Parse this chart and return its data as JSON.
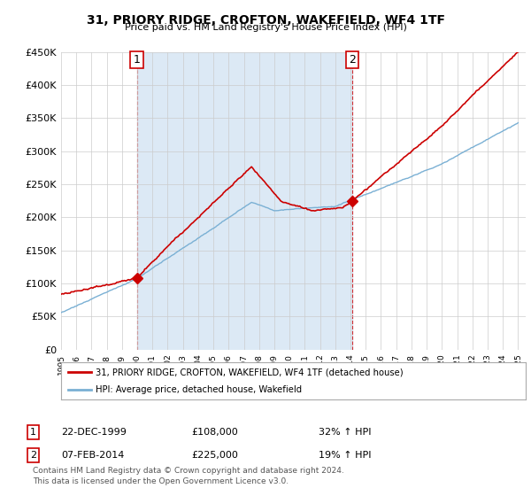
{
  "title": "31, PRIORY RIDGE, CROFTON, WAKEFIELD, WF4 1TF",
  "subtitle": "Price paid vs. HM Land Registry's House Price Index (HPI)",
  "ylabel_ticks": [
    "£0",
    "£50K",
    "£100K",
    "£150K",
    "£200K",
    "£250K",
    "£300K",
    "£350K",
    "£400K",
    "£450K"
  ],
  "ylim": [
    0,
    450000
  ],
  "xlim_start": 1995.0,
  "xlim_end": 2025.5,
  "sale1_x": 1999.97,
  "sale1_y": 108000,
  "sale2_x": 2014.1,
  "sale2_y": 225000,
  "legend_line1": "31, PRIORY RIDGE, CROFTON, WAKEFIELD, WF4 1TF (detached house)",
  "legend_line2": "HPI: Average price, detached house, Wakefield",
  "table_row1": [
    "1",
    "22-DEC-1999",
    "£108,000",
    "32% ↑ HPI"
  ],
  "table_row2": [
    "2",
    "07-FEB-2014",
    "£225,000",
    "19% ↑ HPI"
  ],
  "footnote": "Contains HM Land Registry data © Crown copyright and database right 2024.\nThis data is licensed under the Open Government Licence v3.0.",
  "line_color_house": "#cc0000",
  "line_color_hpi": "#7ab0d4",
  "vline_color": "#cc0000",
  "shade_color": "#dce9f5",
  "background_color": "#ffffff",
  "grid_color": "#cccccc",
  "title_fontsize": 10,
  "subtitle_fontsize": 8
}
